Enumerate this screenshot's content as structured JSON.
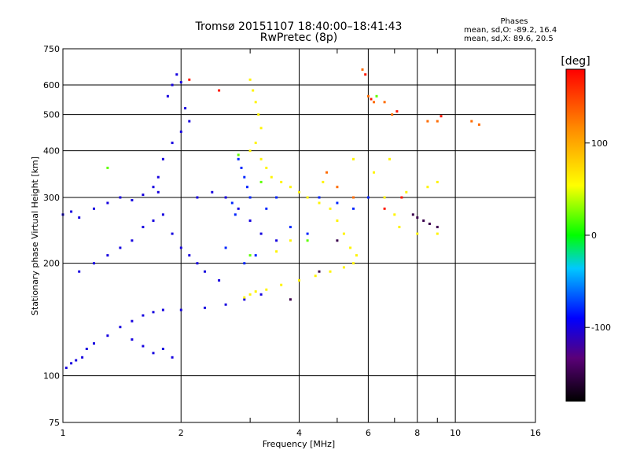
{
  "chart_data": {
    "type": "scatter",
    "title": "Tromsø 20151107 18:40:00–18:41:43",
    "subtitle": "RwPretec (8p)",
    "xlabel": "Frequency [MHz]",
    "ylabel": "Stationary phase Virtual Height [km]",
    "x_scale": "log",
    "y_scale": "log",
    "xlim": [
      1,
      16
    ],
    "ylim": [
      75,
      750
    ],
    "x_ticks": [
      1,
      2,
      4,
      6,
      8,
      10,
      16
    ],
    "x_tick_labels": [
      "1",
      "2",
      "4",
      "6",
      "8",
      "10",
      "16"
    ],
    "x_minor_ticks": [
      3,
      5,
      7,
      9
    ],
    "y_ticks": [
      75,
      100,
      200,
      300,
      400,
      500,
      600,
      750
    ],
    "y_tick_labels": [
      "75",
      "100",
      "200",
      "300",
      "400",
      "500",
      "600",
      "750"
    ],
    "grid": true,
    "stats": {
      "heading": "Phases",
      "line_o": "mean, sd,O: -89.2, 16.4",
      "line_x": "mean, sd,X:  89.6, 20.5"
    },
    "colorbar": {
      "label": "[deg]",
      "range": [
        -180,
        180
      ],
      "ticks": [
        100,
        0,
        -100
      ],
      "tick_labels": [
        "100",
        "0",
        "-100"
      ]
    },
    "clusters": [
      {
        "phase": -100,
        "points": [
          [
            1.02,
            105
          ],
          [
            1.05,
            108
          ],
          [
            1.08,
            110
          ],
          [
            1.12,
            112
          ],
          [
            1.15,
            118
          ],
          [
            1.2,
            122
          ],
          [
            1.3,
            128
          ],
          [
            1.4,
            135
          ],
          [
            1.5,
            140
          ],
          [
            1.6,
            145
          ],
          [
            1.7,
            148
          ],
          [
            1.8,
            150
          ],
          [
            2.0,
            150
          ],
          [
            2.3,
            152
          ],
          [
            2.6,
            155
          ],
          [
            2.9,
            160
          ],
          [
            3.2,
            165
          ],
          [
            1.0,
            270
          ],
          [
            1.05,
            275
          ],
          [
            1.1,
            265
          ],
          [
            1.2,
            280
          ],
          [
            1.3,
            290
          ],
          [
            1.4,
            300
          ],
          [
            1.5,
            295
          ],
          [
            1.6,
            305
          ],
          [
            1.75,
            310
          ],
          [
            1.85,
            560
          ],
          [
            1.9,
            600
          ],
          [
            1.95,
            640
          ],
          [
            2.0,
            610
          ],
          [
            2.05,
            520
          ],
          [
            2.1,
            480
          ],
          [
            2.0,
            450
          ],
          [
            1.9,
            420
          ],
          [
            1.8,
            380
          ],
          [
            1.75,
            340
          ],
          [
            1.7,
            320
          ],
          [
            2.2,
            300
          ],
          [
            2.4,
            310
          ],
          [
            2.6,
            300
          ],
          [
            2.8,
            280
          ],
          [
            3.0,
            260
          ],
          [
            3.2,
            240
          ],
          [
            3.5,
            230
          ],
          [
            1.1,
            190
          ],
          [
            1.2,
            200
          ],
          [
            1.3,
            210
          ],
          [
            1.4,
            220
          ],
          [
            1.5,
            230
          ],
          [
            1.6,
            250
          ],
          [
            1.7,
            260
          ],
          [
            1.8,
            270
          ],
          [
            1.9,
            240
          ],
          [
            2.0,
            220
          ],
          [
            2.1,
            210
          ],
          [
            2.2,
            200
          ],
          [
            2.3,
            190
          ],
          [
            2.5,
            180
          ],
          [
            1.5,
            125
          ],
          [
            1.6,
            120
          ],
          [
            1.7,
            115
          ],
          [
            1.8,
            118
          ],
          [
            1.9,
            112
          ]
        ]
      },
      {
        "phase": -80,
        "points": [
          [
            2.8,
            380
          ],
          [
            2.85,
            360
          ],
          [
            2.9,
            340
          ],
          [
            2.95,
            320
          ],
          [
            3.0,
            300
          ],
          [
            2.7,
            290
          ],
          [
            2.75,
            270
          ],
          [
            3.3,
            280
          ],
          [
            3.5,
            300
          ],
          [
            4.0,
            310
          ],
          [
            4.5,
            300
          ],
          [
            5.0,
            290
          ],
          [
            5.5,
            280
          ],
          [
            6.0,
            300
          ],
          [
            3.8,
            250
          ],
          [
            4.2,
            240
          ],
          [
            2.9,
            200
          ],
          [
            3.1,
            210
          ],
          [
            2.6,
            220
          ]
        ]
      },
      {
        "phase": 60,
        "points": [
          [
            3.0,
            620
          ],
          [
            3.05,
            580
          ],
          [
            3.1,
            540
          ],
          [
            3.15,
            500
          ],
          [
            3.2,
            460
          ],
          [
            3.1,
            420
          ],
          [
            3.0,
            400
          ],
          [
            3.2,
            380
          ],
          [
            3.3,
            360
          ],
          [
            3.4,
            340
          ],
          [
            3.6,
            330
          ],
          [
            3.8,
            320
          ],
          [
            4.0,
            310
          ],
          [
            4.2,
            300
          ],
          [
            4.5,
            290
          ],
          [
            4.8,
            280
          ],
          [
            5.0,
            260
          ],
          [
            5.2,
            240
          ],
          [
            5.4,
            220
          ],
          [
            5.6,
            210
          ],
          [
            5.5,
            200
          ],
          [
            5.2,
            195
          ],
          [
            4.8,
            190
          ],
          [
            4.4,
            185
          ],
          [
            4.0,
            180
          ],
          [
            3.6,
            175
          ],
          [
            3.3,
            170
          ],
          [
            3.1,
            168
          ],
          [
            3.0,
            165
          ],
          [
            2.9,
            162
          ],
          [
            3.5,
            215
          ],
          [
            3.8,
            230
          ],
          [
            4.6,
            330
          ],
          [
            5.5,
            380
          ],
          [
            6.2,
            350
          ],
          [
            6.6,
            300
          ],
          [
            7.0,
            270
          ],
          [
            7.2,
            250
          ],
          [
            8.0,
            240
          ],
          [
            9.0,
            240
          ],
          [
            6.8,
            380
          ],
          [
            7.5,
            310
          ],
          [
            8.5,
            320
          ],
          [
            9.0,
            330
          ]
        ]
      },
      {
        "phase": 130,
        "points": [
          [
            5.8,
            660
          ],
          [
            6.0,
            560
          ],
          [
            6.2,
            540
          ],
          [
            6.6,
            540
          ],
          [
            6.9,
            500
          ],
          [
            8.5,
            480
          ],
          [
            9.0,
            480
          ],
          [
            11.0,
            480
          ],
          [
            11.5,
            470
          ],
          [
            4.7,
            350
          ],
          [
            5.0,
            320
          ],
          [
            5.5,
            300
          ]
        ]
      },
      {
        "phase": 170,
        "points": [
          [
            5.9,
            640
          ],
          [
            6.1,
            550
          ],
          [
            7.1,
            510
          ],
          [
            9.2,
            495
          ],
          [
            2.1,
            620
          ],
          [
            2.5,
            580
          ],
          [
            6.6,
            280
          ],
          [
            7.3,
            300
          ]
        ]
      },
      {
        "phase": 20,
        "points": [
          [
            2.8,
            390
          ],
          [
            3.0,
            210
          ],
          [
            4.2,
            230
          ],
          [
            1.3,
            360
          ],
          [
            6.3,
            560
          ],
          [
            3.2,
            330
          ]
        ]
      },
      {
        "phase": -150,
        "points": [
          [
            7.8,
            270
          ],
          [
            8.0,
            265
          ],
          [
            8.3,
            260
          ],
          [
            8.6,
            255
          ],
          [
            9.0,
            250
          ],
          [
            5.0,
            230
          ],
          [
            4.5,
            190
          ],
          [
            3.8,
            160
          ]
        ]
      }
    ]
  }
}
